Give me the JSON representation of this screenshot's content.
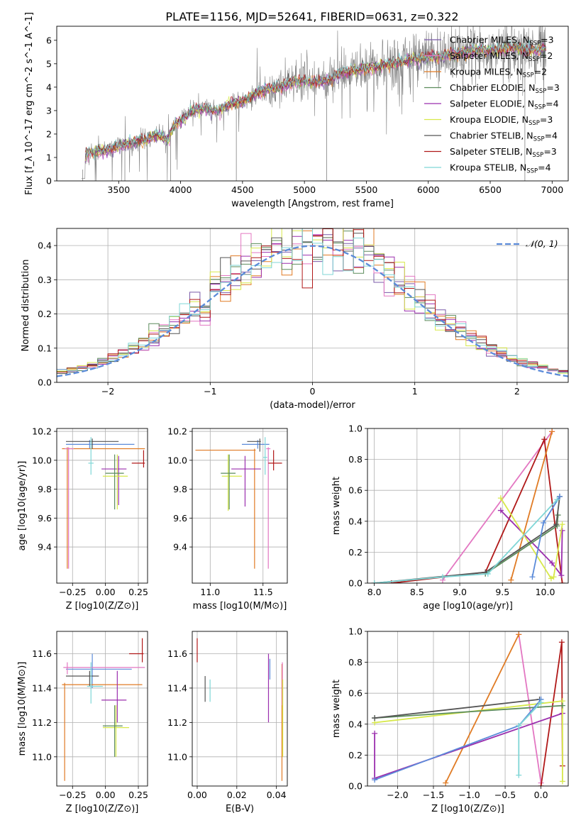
{
  "figure_title": "PLATE=1156, MJD=52641, FIBERID=0631, z=0.322",
  "colors": {
    "Chabrier MILES": "#7a5aa8",
    "Salpeter MILES": "#e377c2",
    "Kroupa MILES": "#e07b24",
    "Chabrier ELODIE": "#5c8c5c",
    "Salpeter ELODIE": "#9b2fae",
    "Kroupa ELODIE": "#d7e84a",
    "Chabrier STELIB": "#555555",
    "Salpeter STELIB": "#b01818",
    "Kroupa STELIB": "#7fd6d6",
    "Blue": "#5b8bd9"
  },
  "chart_data": [
    {
      "id": "spectrum",
      "type": "line",
      "xlabel": "wavelength [Angstrom, rest frame]",
      "ylabel": "Flux [f_λ 10^-17 erg cm^-2 s^-1 A^-1]",
      "xlim": [
        3000,
        7130
      ],
      "ylim": [
        0,
        6.6
      ],
      "xticks": [
        3500,
        4000,
        4500,
        5000,
        5500,
        6000,
        6500,
        7000
      ],
      "yticks": [
        0,
        1,
        2,
        3,
        4,
        5,
        6
      ],
      "data_range": [
        3200,
        6950
      ],
      "legend_position": "upper right",
      "legend": [
        {
          "label": "Chabrier MILES, N_SSP=3",
          "color": "#7a5aa8"
        },
        {
          "label": "Salpeter MILES, N_SSP=2",
          "color": "#e377c2"
        },
        {
          "label": "Kroupa MILES, N_SSP=2",
          "color": "#e07b24"
        },
        {
          "label": "Chabrier ELODIE, N_SSP=3",
          "color": "#5c8c5c"
        },
        {
          "label": "Salpeter ELODIE, N_SSP=4",
          "color": "#9b2fae"
        },
        {
          "label": "Kroupa ELODIE, N_SSP=3",
          "color": "#d7e84a"
        },
        {
          "label": "Chabrier STELIB, N_SSP=4",
          "color": "#555555"
        },
        {
          "label": "Salpeter STELIB, N_SSP=3",
          "color": "#b01818"
        },
        {
          "label": "Kroupa STELIB, N_SSP=4",
          "color": "#7fd6d6"
        }
      ],
      "continuum": [
        [
          3200,
          0.15
        ],
        [
          3230,
          1.15
        ],
        [
          3300,
          1.25
        ],
        [
          3400,
          1.3
        ],
        [
          3500,
          1.5
        ],
        [
          3600,
          1.6
        ],
        [
          3700,
          1.75
        ],
        [
          3800,
          1.95
        ],
        [
          3900,
          1.8
        ],
        [
          3950,
          2.4
        ],
        [
          4000,
          2.6
        ],
        [
          4100,
          3.0
        ],
        [
          4200,
          3.1
        ],
        [
          4300,
          3.0
        ],
        [
          4400,
          3.3
        ],
        [
          4500,
          3.4
        ],
        [
          4600,
          3.7
        ],
        [
          4700,
          3.9
        ],
        [
          4800,
          4.0
        ],
        [
          4900,
          4.2
        ],
        [
          5000,
          4.3
        ],
        [
          5100,
          4.2
        ],
        [
          5200,
          4.3
        ],
        [
          5300,
          4.6
        ],
        [
          5400,
          4.7
        ],
        [
          5500,
          4.8
        ],
        [
          5600,
          4.9
        ],
        [
          5700,
          5.0
        ],
        [
          5800,
          5.1
        ],
        [
          5900,
          5.2
        ],
        [
          6000,
          5.3
        ],
        [
          6100,
          5.3
        ],
        [
          6200,
          5.4
        ],
        [
          6300,
          5.5
        ],
        [
          6400,
          5.6
        ],
        [
          6500,
          5.6
        ],
        [
          6600,
          5.6
        ],
        [
          6700,
          5.7
        ],
        [
          6800,
          5.6
        ],
        [
          6900,
          5.6
        ],
        [
          6950,
          5.6
        ]
      ]
    },
    {
      "id": "residuals",
      "type": "histogram",
      "xlabel": "(data-model)/error",
      "ylabel": "Normed distribution",
      "xlim": [
        -2.5,
        2.5
      ],
      "ylim": [
        0,
        0.45
      ],
      "xticks": [
        -2,
        -1,
        0,
        1,
        2
      ],
      "yticks": [
        0.0,
        0.1,
        0.2,
        0.3,
        0.4
      ],
      "bins": [
        -2.5,
        2.5,
        50
      ],
      "gaussian_label": "𝒩(0, 1)",
      "gaussian_color": "#5b8bd9",
      "legend_position": "upper right"
    },
    {
      "id": "age_vs_Z",
      "type": "errorbar",
      "xlabel": "Z [log10(Z/Z⊙)]",
      "ylabel": "age [log10(age/yr)]",
      "xlim": [
        -0.37,
        0.32
      ],
      "ylim": [
        9.15,
        10.22
      ],
      "xticks": [
        -0.25,
        0.0,
        0.25
      ],
      "xticklabels": [
        "−0.25",
        "0.00",
        "0.25"
      ],
      "yticks": [
        9.4,
        9.6,
        9.8,
        10.0,
        10.2
      ],
      "points": [
        {
          "x": -0.12,
          "y": 10.11,
          "xlo": -0.3,
          "xhi": 0.22,
          "ylo": 10.08,
          "yhi": 10.14,
          "color": "#5b8bd9"
        },
        {
          "x": -0.29,
          "y": 10.08,
          "xlo": -0.33,
          "xhi": 0.3,
          "ylo": 9.25,
          "yhi": 10.09,
          "color": "#e07b24"
        },
        {
          "x": -0.28,
          "y": 10.08,
          "xlo": -0.31,
          "xhi": -0.24,
          "ylo": 9.25,
          "yhi": 10.09,
          "color": "#e377c2"
        },
        {
          "x": -0.1,
          "y": 10.13,
          "xlo": -0.3,
          "xhi": 0.1,
          "ylo": 10.08,
          "yhi": 10.15,
          "color": "#555555"
        },
        {
          "x": -0.11,
          "y": 9.98,
          "xlo": -0.13,
          "xhi": -0.09,
          "ylo": 9.9,
          "yhi": 10.16,
          "color": "#7fd6d6"
        },
        {
          "x": 0.1,
          "y": 9.94,
          "xlo": -0.03,
          "xhi": 0.16,
          "ylo": 9.69,
          "yhi": 10.03,
          "color": "#9b2fae"
        },
        {
          "x": 0.09,
          "y": 9.89,
          "xlo": -0.02,
          "xhi": 0.17,
          "ylo": 9.66,
          "yhi": 10.04,
          "color": "#d7e84a"
        },
        {
          "x": 0.07,
          "y": 9.91,
          "xlo": 0.0,
          "xhi": 0.14,
          "ylo": 9.66,
          "yhi": 10.04,
          "color": "#5c8c5c"
        },
        {
          "x": 0.29,
          "y": 9.98,
          "xlo": 0.2,
          "xhi": 0.3,
          "ylo": 9.95,
          "yhi": 10.07,
          "color": "#b01818"
        }
      ]
    },
    {
      "id": "age_vs_mass",
      "type": "errorbar",
      "xlabel": "mass [log10(M/M⊙)]",
      "ylabel": "",
      "xlim": [
        10.83,
        11.73
      ],
      "ylim": [
        9.15,
        10.22
      ],
      "xticks": [
        11.0,
        11.5
      ],
      "yticks": [
        9.4,
        9.6,
        9.8,
        10.0,
        10.2
      ],
      "points": [
        {
          "x": 11.45,
          "y": 10.11,
          "xlo": 11.3,
          "xhi": 11.56,
          "ylo": 10.08,
          "yhi": 10.14,
          "color": "#5b8bd9"
        },
        {
          "x": 11.42,
          "y": 10.07,
          "xlo": 10.86,
          "xhi": 11.43,
          "ylo": 9.25,
          "yhi": 10.08,
          "color": "#e07b24"
        },
        {
          "x": 11.55,
          "y": 10.08,
          "xlo": 11.53,
          "xhi": 11.57,
          "ylo": 9.25,
          "yhi": 10.09,
          "color": "#e377c2"
        },
        {
          "x": 11.47,
          "y": 10.13,
          "xlo": 11.35,
          "xhi": 11.48,
          "ylo": 10.06,
          "yhi": 10.15,
          "color": "#555555"
        },
        {
          "x": 11.52,
          "y": 10.02,
          "xlo": 11.5,
          "xhi": 11.54,
          "ylo": 9.9,
          "yhi": 10.16,
          "color": "#7fd6d6"
        },
        {
          "x": 11.33,
          "y": 9.94,
          "xlo": 11.2,
          "xhi": 11.48,
          "ylo": 9.68,
          "yhi": 10.03,
          "color": "#9b2fae"
        },
        {
          "x": 11.17,
          "y": 9.89,
          "xlo": 11.11,
          "xhi": 11.3,
          "ylo": 9.65,
          "yhi": 10.04,
          "color": "#d7e84a"
        },
        {
          "x": 11.18,
          "y": 9.91,
          "xlo": 11.1,
          "xhi": 11.24,
          "ylo": 9.66,
          "yhi": 10.04,
          "color": "#5c8c5c"
        },
        {
          "x": 11.6,
          "y": 9.98,
          "xlo": 11.55,
          "xhi": 11.68,
          "ylo": 9.93,
          "yhi": 10.07,
          "color": "#b01818"
        }
      ]
    },
    {
      "id": "weight_vs_age",
      "type": "line",
      "xlabel": "age [log10(age/yr)]",
      "ylabel": "mass weight",
      "xlim": [
        7.92,
        10.27
      ],
      "ylim": [
        0,
        1.0
      ],
      "xticks": [
        8.0,
        8.5,
        9.0,
        9.5,
        10.0
      ],
      "yticks": [
        0.0,
        0.2,
        0.4,
        0.6,
        0.8,
        1.0
      ],
      "series": [
        {
          "color": "#e377c2",
          "x": [
            8.8,
            10.08
          ],
          "y": [
            0.02,
            0.98
          ]
        },
        {
          "color": "#b01818",
          "x": [
            8.2,
            9.3,
            9.99,
            10.2
          ],
          "y": [
            0.0,
            0.07,
            0.93,
            0.0
          ]
        },
        {
          "color": "#e07b24",
          "x": [
            9.6,
            10.08
          ],
          "y": [
            0.02,
            0.98
          ]
        },
        {
          "color": "#9b2fae",
          "x": [
            9.48,
            10.08,
            10.19,
            10.2
          ],
          "y": [
            0.47,
            0.13,
            0.05,
            0.34
          ]
        },
        {
          "color": "#d7e84a",
          "x": [
            9.48,
            10.07,
            10.1,
            10.2
          ],
          "y": [
            0.55,
            0.03,
            0.04,
            0.38
          ]
        },
        {
          "color": "#5c8c5c",
          "x": [
            9.3,
            10.14,
            10.15
          ],
          "y": [
            0.06,
            0.37,
            0.44
          ]
        },
        {
          "color": "#555555",
          "x": [
            8.0,
            9.3,
            10.13,
            10.17
          ],
          "y": [
            0.0,
            0.07,
            0.38,
            0.56
          ]
        },
        {
          "color": "#5b8bd9",
          "x": [
            9.85,
            9.98,
            10.17
          ],
          "y": [
            0.04,
            0.39,
            0.56
          ]
        },
        {
          "color": "#7fd6d6",
          "x": [
            8.0,
            8.8,
            9.33,
            10.14
          ],
          "y": [
            0.0,
            0.04,
            0.06,
            0.54
          ]
        }
      ]
    },
    {
      "id": "mass_vs_Z",
      "type": "errorbar",
      "xlabel": "Z [log10(Z/Z⊙)]",
      "ylabel": "mass [log10(M/M⊙)]",
      "xlim": [
        -0.37,
        0.32
      ],
      "ylim": [
        10.83,
        11.73
      ],
      "xticks": [
        -0.25,
        0.0,
        0.25
      ],
      "xticklabels": [
        "−0.25",
        "0.00",
        "0.25"
      ],
      "yticks": [
        11.0,
        11.2,
        11.4,
        11.6
      ],
      "points": [
        {
          "x": -0.1,
          "y": 11.51,
          "xlo": -0.3,
          "xhi": 0.2,
          "ylo": 11.4,
          "yhi": 11.6,
          "color": "#5b8bd9"
        },
        {
          "x": -0.31,
          "y": 11.42,
          "xlo": -0.33,
          "xhi": 0.28,
          "ylo": 10.86,
          "yhi": 11.43,
          "color": "#e07b24"
        },
        {
          "x": -0.29,
          "y": 11.52,
          "xlo": -0.32,
          "xhi": 0.3,
          "ylo": 11.48,
          "yhi": 11.55,
          "color": "#e377c2"
        },
        {
          "x": -0.12,
          "y": 11.47,
          "xlo": -0.3,
          "xhi": -0.05,
          "ylo": 11.41,
          "yhi": 11.5,
          "color": "#555555"
        },
        {
          "x": -0.11,
          "y": 11.41,
          "xlo": -0.14,
          "xhi": -0.02,
          "ylo": 11.31,
          "yhi": 11.55,
          "color": "#7fd6d6"
        },
        {
          "x": 0.09,
          "y": 11.33,
          "xlo": -0.03,
          "xhi": 0.16,
          "ylo": 11.2,
          "yhi": 11.5,
          "color": "#9b2fae"
        },
        {
          "x": 0.08,
          "y": 11.17,
          "xlo": -0.02,
          "xhi": 0.18,
          "ylo": 11.0,
          "yhi": 11.3,
          "color": "#d7e84a"
        },
        {
          "x": 0.07,
          "y": 11.18,
          "xlo": -0.02,
          "xhi": 0.13,
          "ylo": 11.0,
          "yhi": 11.3,
          "color": "#5c8c5c"
        },
        {
          "x": 0.28,
          "y": 11.6,
          "xlo": 0.18,
          "xhi": 0.29,
          "ylo": 11.55,
          "yhi": 11.69,
          "color": "#b01818"
        }
      ]
    },
    {
      "id": "mass_vs_ebv",
      "type": "errorbar",
      "xlabel": "E(B-V)",
      "ylabel": "",
      "xlim": [
        -0.0025,
        0.0455
      ],
      "ylim": [
        10.83,
        11.73
      ],
      "xticks": [
        0.0,
        0.02,
        0.04
      ],
      "xticklabels": [
        "0.00",
        "0.02",
        "0.04"
      ],
      "yticks": [
        11.0,
        11.2,
        11.4,
        11.6
      ],
      "points": [
        {
          "x": 0.0,
          "y": 11.63,
          "ylo": 11.55,
          "yhi": 11.69,
          "color": "#b01818"
        },
        {
          "x": 0.004,
          "y": 11.4,
          "ylo": 11.32,
          "yhi": 11.47,
          "color": "#555555"
        },
        {
          "x": 0.0065,
          "y": 11.38,
          "ylo": 11.32,
          "yhi": 11.45,
          "color": "#7fd6d6"
        },
        {
          "x": 0.036,
          "y": 11.4,
          "ylo": 11.2,
          "yhi": 11.6,
          "color": "#9b2fae"
        },
        {
          "x": 0.0367,
          "y": 11.5,
          "ylo": 11.45,
          "yhi": 11.57,
          "color": "#5b8bd9"
        },
        {
          "x": 0.0428,
          "y": 11.2,
          "ylo": 10.86,
          "yhi": 11.54,
          "color": "#e07b24"
        },
        {
          "x": 0.043,
          "y": 11.4,
          "ylo": 11.3,
          "yhi": 11.55,
          "color": "#e377c2"
        },
        {
          "x": 0.0432,
          "y": 11.2,
          "ylo": 11.0,
          "yhi": 11.45,
          "color": "#d7e84a"
        }
      ]
    },
    {
      "id": "weight_vs_Z",
      "type": "line",
      "xlabel": "Z [log10(Z/Z⊙)]",
      "ylabel": "mass weight",
      "xlim": [
        -2.42,
        0.38
      ],
      "ylim": [
        0,
        1.0
      ],
      "xticks": [
        -2.0,
        -1.5,
        -1.0,
        -0.5,
        0.0
      ],
      "xticklabels": [
        "−2.0",
        "−1.5",
        "−1.0",
        "−0.5",
        "0.0"
      ],
      "yticks": [
        0.0,
        0.2,
        0.4,
        0.6,
        0.8,
        1.0
      ],
      "series": [
        {
          "color": "#e377c2",
          "x": [
            -0.31,
            0.0
          ],
          "y": [
            0.98,
            0.02
          ]
        },
        {
          "color": "#e07b24",
          "x": [
            -1.33,
            -0.31
          ],
          "y": [
            0.02,
            0.98
          ]
        },
        {
          "color": "#b01818",
          "x": [
            0.0,
            0.29,
            0.3
          ],
          "y": [
            0.0,
            0.93,
            0.13
          ]
        },
        {
          "color": "#9b2fae",
          "x": [
            -2.32,
            -2.32,
            0.3
          ],
          "y": [
            0.34,
            0.05,
            0.47
          ]
        },
        {
          "color": "#d7e84a",
          "x": [
            -2.32,
            0.3,
            0.3
          ],
          "y": [
            0.41,
            0.55,
            0.03
          ]
        },
        {
          "color": "#5c8c5c",
          "x": [
            -2.32,
            0.3
          ],
          "y": [
            0.44,
            0.52
          ]
        },
        {
          "color": "#555555",
          "x": [
            -2.32,
            -0.02
          ],
          "y": [
            0.44,
            0.56
          ]
        },
        {
          "color": "#5b8bd9",
          "x": [
            -2.32,
            -0.31,
            0.0
          ],
          "y": [
            0.04,
            0.39,
            0.56
          ]
        },
        {
          "color": "#7fd6d6",
          "x": [
            -0.31,
            -0.31,
            0.0
          ],
          "y": [
            0.07,
            0.39,
            0.54
          ]
        }
      ]
    }
  ]
}
